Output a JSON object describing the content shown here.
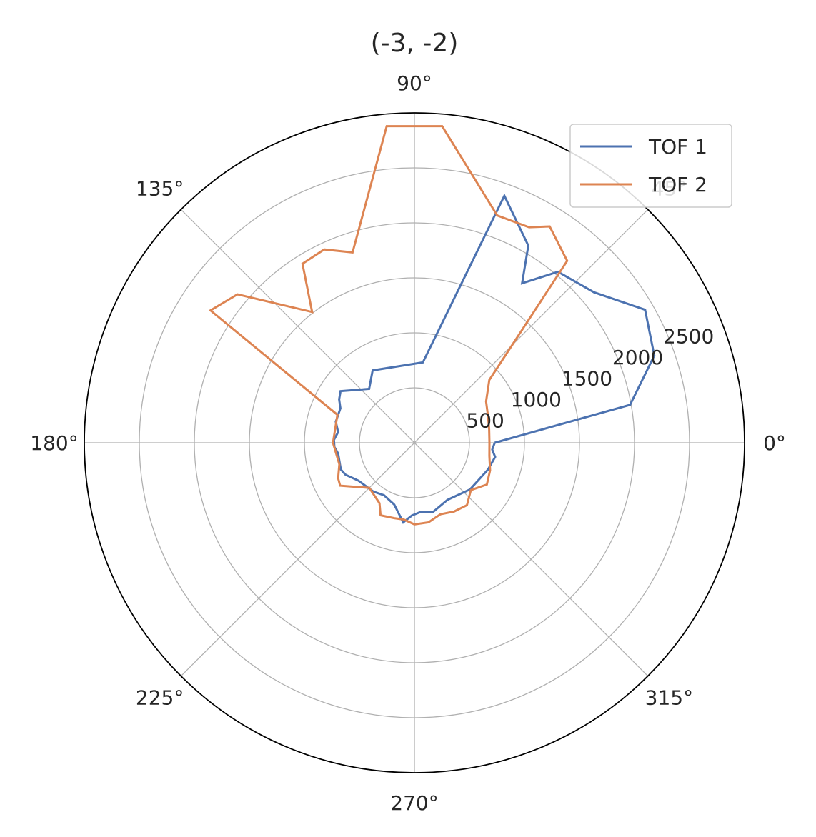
{
  "chart_data": {
    "type": "polar-line",
    "title": "(-3, -2)",
    "angle_tick_labels": [
      "0°",
      "45°",
      "90°",
      "135°",
      "180°",
      "225°",
      "270°",
      "315°"
    ],
    "radial_ticks": [
      500,
      1000,
      1500,
      2000,
      2500
    ],
    "radial_tick_labels": [
      "500",
      "1000",
      "1500",
      "2000",
      "2500"
    ],
    "rlim": [
      0,
      3000
    ],
    "grid": true,
    "legend_position": "top-right",
    "series": [
      {
        "name": "TOF 1",
        "color": "#4c72b0",
        "points": [
          {
            "theta": 0,
            "r": 730
          },
          {
            "theta": 10,
            "r": 1990
          },
          {
            "theta": 20,
            "r": 2320
          },
          {
            "theta": 30,
            "r": 2420
          },
          {
            "theta": 40,
            "r": 2130
          },
          {
            "theta": 50,
            "r": 2030
          },
          {
            "theta": 56,
            "r": 1750
          },
          {
            "theta": 60,
            "r": 2070
          },
          {
            "theta": 70,
            "r": 2390
          },
          {
            "theta": 84,
            "r": 735
          },
          {
            "theta": 120,
            "r": 760
          },
          {
            "theta": 130,
            "r": 640
          },
          {
            "theta": 145,
            "r": 820
          },
          {
            "theta": 150,
            "r": 790
          },
          {
            "theta": 155,
            "r": 742
          },
          {
            "theta": 165,
            "r": 740
          },
          {
            "theta": 172,
            "r": 700
          },
          {
            "theta": 178,
            "r": 732
          },
          {
            "theta": 183,
            "r": 728
          },
          {
            "theta": 188,
            "r": 700
          },
          {
            "theta": 200,
            "r": 712
          },
          {
            "theta": 205,
            "r": 690
          },
          {
            "theta": 214,
            "r": 615
          },
          {
            "theta": 230,
            "r": 580
          },
          {
            "theta": 240,
            "r": 552
          },
          {
            "theta": 252,
            "r": 592
          },
          {
            "theta": 262,
            "r": 732
          },
          {
            "theta": 268,
            "r": 662
          },
          {
            "theta": 275,
            "r": 632
          },
          {
            "theta": 285,
            "r": 652
          },
          {
            "theta": 300,
            "r": 600
          },
          {
            "theta": 320,
            "r": 660
          },
          {
            "theta": 340,
            "r": 712
          },
          {
            "theta": 350,
            "r": 745
          },
          {
            "theta": 355,
            "r": 710
          },
          {
            "theta": 0,
            "r": 730
          }
        ]
      },
      {
        "name": "TOF 2",
        "color": "#dd8452",
        "points": [
          {
            "theta": 0,
            "r": 682
          },
          {
            "theta": 10,
            "r": 690
          },
          {
            "theta": 20,
            "r": 712
          },
          {
            "theta": 30,
            "r": 752
          },
          {
            "theta": 40,
            "r": 888
          },
          {
            "theta": 50,
            "r": 2160
          },
          {
            "theta": 58,
            "r": 2320
          },
          {
            "theta": 62,
            "r": 2220
          },
          {
            "theta": 70,
            "r": 2200
          },
          {
            "theta": 85,
            "r": 2890
          },
          {
            "theta": 95,
            "r": 2890
          },
          {
            "theta": 108,
            "r": 1820
          },
          {
            "theta": 115,
            "r": 1940
          },
          {
            "theta": 122,
            "r": 1920
          },
          {
            "theta": 128,
            "r": 1510
          },
          {
            "theta": 140,
            "r": 2100
          },
          {
            "theta": 147,
            "r": 2210
          },
          {
            "theta": 160,
            "r": 745
          },
          {
            "theta": 180,
            "r": 740
          },
          {
            "theta": 190,
            "r": 715
          },
          {
            "theta": 196,
            "r": 710
          },
          {
            "theta": 205,
            "r": 765
          },
          {
            "theta": 210,
            "r": 780
          },
          {
            "theta": 225,
            "r": 580
          },
          {
            "theta": 240,
            "r": 635
          },
          {
            "theta": 245,
            "r": 728
          },
          {
            "theta": 255,
            "r": 710
          },
          {
            "theta": 262,
            "r": 705
          },
          {
            "theta": 270,
            "r": 742
          },
          {
            "theta": 280,
            "r": 735
          },
          {
            "theta": 290,
            "r": 692
          },
          {
            "theta": 300,
            "r": 722
          },
          {
            "theta": 310,
            "r": 742
          },
          {
            "theta": 320,
            "r": 670
          },
          {
            "theta": 330,
            "r": 760
          },
          {
            "theta": 340,
            "r": 732
          },
          {
            "theta": 350,
            "r": 692
          },
          {
            "theta": 0,
            "r": 682
          }
        ]
      }
    ]
  }
}
